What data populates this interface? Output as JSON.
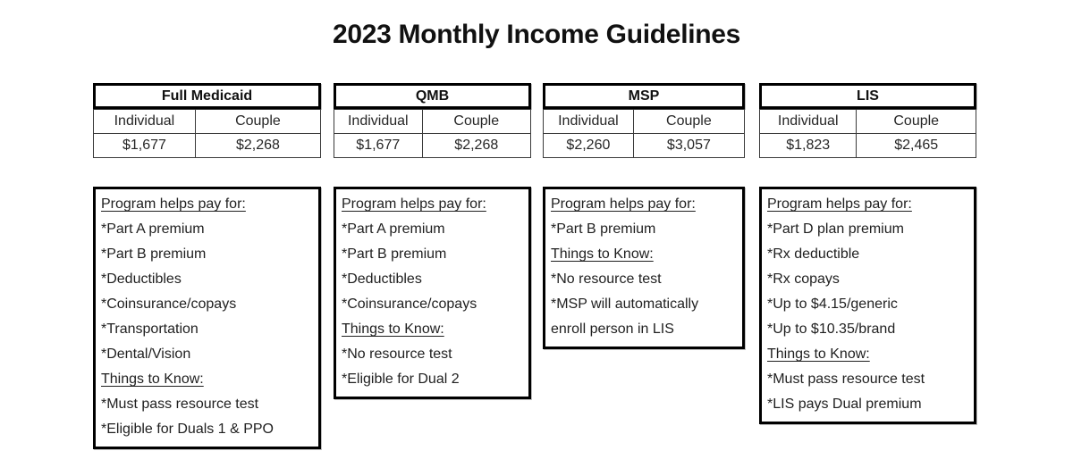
{
  "page": {
    "title": "2023 Monthly Income Guidelines"
  },
  "programs": [
    {
      "name": "Full Medicaid",
      "columns": [
        "Individual",
        "Couple"
      ],
      "individual": "$1,677",
      "couple": "$2,268",
      "details": [
        "Program helps pay for: ",
        "*Part A premium",
        "*Part B premium",
        "*Deductibles",
        "*Coinsurance/copays",
        "*Transportation",
        "*Dental/Vision",
        "Things to Know:",
        "*Must pass resource test",
        "*Eligible for Duals 1 & PPO"
      ]
    },
    {
      "name": "QMB",
      "columns": [
        "Individual",
        "Couple"
      ],
      "individual": "$1,677",
      "couple": "$2,268",
      "details": [
        "Program helps pay for:",
        "*Part A premium",
        "*Part B premium",
        "*Deductibles",
        "*Coinsurance/copays",
        "Things to Know:",
        "*No resource test",
        "*Eligible for Dual 2"
      ]
    },
    {
      "name": "MSP",
      "columns": [
        "Individual",
        "Couple"
      ],
      "individual": "$2,260",
      "couple": "$3,057",
      "details": [
        "Program helps pay for: ",
        "*Part B premium",
        "Things to Know:",
        "*No resource test",
        "*MSP will automatically enroll person in LIS"
      ]
    },
    {
      "name": "LIS",
      "columns": [
        "Individual",
        "Couple"
      ],
      "individual": "$1,823",
      "couple": "$2,465",
      "details": [
        "Program helps pay for: ",
        "*Part D plan premium",
        "*Rx deductible",
        "*Rx copays",
        "*Up to $4.15/generic",
        "*Up to $10.35/brand",
        "Things to Know:",
        "*Must pass resource test",
        "*LIS pays Dual premium"
      ]
    }
  ]
}
